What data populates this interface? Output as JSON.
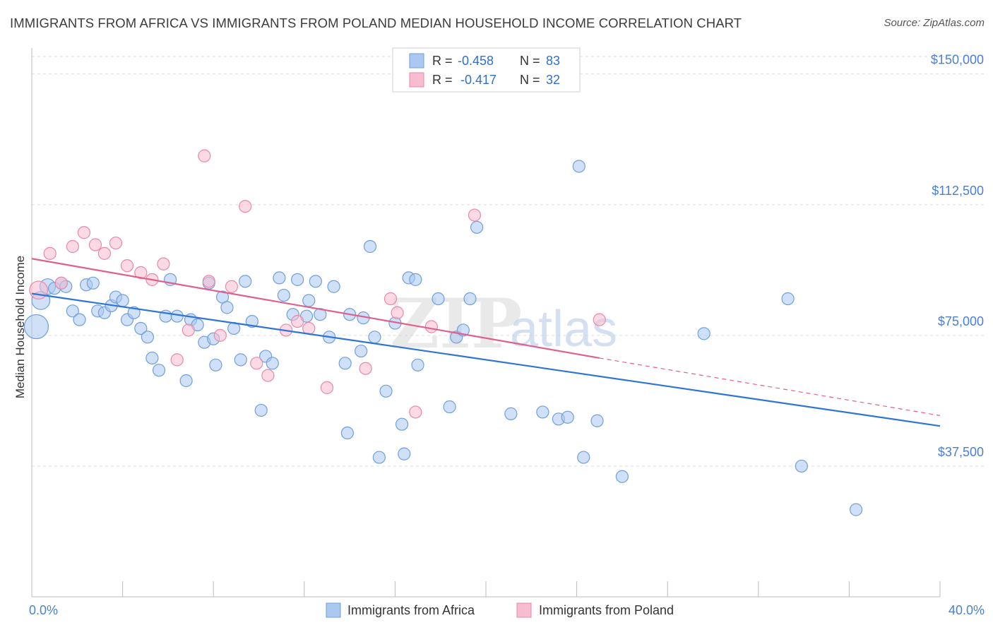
{
  "title": "IMMIGRANTS FROM AFRICA VS IMMIGRANTS FROM POLAND MEDIAN HOUSEHOLD INCOME CORRELATION CHART",
  "source": "Source: ZipAtlas.com",
  "watermark": {
    "zip": "ZIP",
    "atlas": "atlas"
  },
  "colors": {
    "africa_fill": "#aac8f0",
    "africa_stroke": "#6f9fdc",
    "africa_line": "#2f74d6",
    "poland_fill": "#f7bccf",
    "poland_stroke": "#e889a8",
    "poland_line": "#e0608c",
    "grid": "#dddddd",
    "tick_text": "#4a7fd4"
  },
  "legend": {
    "africa": {
      "r_label": "R =",
      "r_value": "-0.458",
      "n_label": "N =",
      "n_value": "83"
    },
    "poland": {
      "r_label": "R =",
      "r_value": "-0.417",
      "n_label": "N =",
      "n_value": "32"
    }
  },
  "chart_data": {
    "type": "scatter",
    "title": "IMMIGRANTS FROM AFRICA VS IMMIGRANTS FROM POLAND MEDIAN HOUSEHOLD INCOME CORRELATION CHART",
    "xlabel": "",
    "ylabel": "Median Household Income",
    "xlim": [
      0,
      40
    ],
    "ylim": [
      0,
      155000
    ],
    "x_ticks": [
      0,
      4,
      8,
      12,
      16,
      20,
      24,
      28,
      32,
      36,
      40
    ],
    "x_tick_labels": [
      {
        "value": 0,
        "label": "0.0%"
      },
      {
        "value": 40,
        "label": "40.0%"
      }
    ],
    "y_ticks": [
      {
        "value": 37500,
        "label": "$37,500"
      },
      {
        "value": 75000,
        "label": "$75,000"
      },
      {
        "value": 112500,
        "label": "$112,500"
      },
      {
        "value": 150000,
        "label": "$150,000"
      }
    ],
    "grid": true,
    "legend_position": "top-center",
    "series": [
      {
        "name": "Immigrants from Africa",
        "trend": {
          "x0": 0,
          "y0": 87000,
          "x1": 40,
          "y1": 49000
        },
        "points": [
          [
            0.2,
            77500,
            2
          ],
          [
            0.4,
            85000,
            1.5
          ],
          [
            0.7,
            89000,
            1.3
          ],
          [
            1.0,
            88500,
            1
          ],
          [
            1.3,
            90000,
            1
          ],
          [
            1.5,
            89000,
            1
          ],
          [
            1.8,
            82000,
            1
          ],
          [
            2.1,
            79500,
            1
          ],
          [
            2.4,
            89500,
            1
          ],
          [
            2.7,
            90000,
            1
          ],
          [
            2.9,
            82000,
            1
          ],
          [
            3.2,
            81500,
            1
          ],
          [
            3.5,
            83500,
            1
          ],
          [
            3.7,
            86000,
            1
          ],
          [
            4.0,
            85000,
            1
          ],
          [
            4.2,
            79500,
            1
          ],
          [
            4.5,
            81500,
            1
          ],
          [
            4.8,
            77000,
            1
          ],
          [
            5.1,
            74500,
            1
          ],
          [
            5.3,
            68500,
            1
          ],
          [
            5.6,
            65000,
            1
          ],
          [
            5.9,
            80500,
            1
          ],
          [
            6.1,
            91000,
            1
          ],
          [
            6.4,
            80500,
            1
          ],
          [
            6.8,
            62000,
            1
          ],
          [
            7.0,
            79500,
            1
          ],
          [
            7.3,
            78000,
            1
          ],
          [
            7.6,
            73000,
            1
          ],
          [
            7.8,
            90000,
            1
          ],
          [
            8.1,
            66500,
            1
          ],
          [
            8.4,
            86000,
            1
          ],
          [
            8.6,
            83000,
            1
          ],
          [
            8.9,
            77000,
            1
          ],
          [
            9.2,
            68000,
            1
          ],
          [
            9.4,
            90500,
            1
          ],
          [
            9.7,
            79000,
            1
          ],
          [
            10.1,
            53500,
            1
          ],
          [
            10.3,
            69000,
            1
          ],
          [
            10.6,
            67000,
            1
          ],
          [
            10.9,
            91500,
            1
          ],
          [
            11.1,
            86500,
            1
          ],
          [
            11.5,
            81000,
            1
          ],
          [
            11.7,
            91000,
            1
          ],
          [
            12.1,
            80500,
            1
          ],
          [
            12.2,
            85000,
            1
          ],
          [
            12.5,
            90500,
            1
          ],
          [
            12.7,
            81000,
            1
          ],
          [
            13.1,
            74500,
            1
          ],
          [
            13.3,
            89000,
            1
          ],
          [
            13.8,
            67000,
            1
          ],
          [
            14.0,
            81000,
            1
          ],
          [
            14.5,
            70500,
            1
          ],
          [
            14.6,
            80000,
            1
          ],
          [
            14.9,
            100500,
            1
          ],
          [
            15.1,
            74500,
            1
          ],
          [
            15.3,
            40000,
            1
          ],
          [
            15.6,
            59000,
            1
          ],
          [
            16.0,
            78500,
            1
          ],
          [
            16.3,
            49500,
            1
          ],
          [
            16.6,
            91500,
            1
          ],
          [
            16.4,
            41000,
            1
          ],
          [
            16.9,
            91000,
            1
          ],
          [
            17.0,
            66500,
            1
          ],
          [
            17.9,
            85500,
            1
          ],
          [
            18.4,
            54500,
            1
          ],
          [
            18.7,
            74500,
            1
          ],
          [
            19.0,
            76500,
            1
          ],
          [
            19.3,
            85500,
            1
          ],
          [
            19.6,
            106000,
            1
          ],
          [
            21.1,
            52500,
            1
          ],
          [
            22.5,
            53000,
            1
          ],
          [
            23.2,
            51000,
            1
          ],
          [
            23.6,
            51500,
            1
          ],
          [
            24.1,
            123500,
            1
          ],
          [
            24.3,
            40000,
            1
          ],
          [
            24.9,
            50500,
            1
          ],
          [
            26.0,
            34500,
            1
          ],
          [
            13.9,
            47000,
            1
          ],
          [
            29.6,
            75500,
            1
          ],
          [
            33.3,
            85500,
            1
          ],
          [
            33.9,
            37500,
            1
          ],
          [
            36.3,
            25000,
            1
          ],
          [
            8.0,
            74000,
            1
          ]
        ]
      },
      {
        "name": "Immigrants from Poland",
        "trend": {
          "x0": 0,
          "y0": 97000,
          "x1": 25,
          "y1": 68500
        },
        "trend_dashed": {
          "x0": 25,
          "y0": 68500,
          "x1": 40,
          "y1": 52000
        },
        "points": [
          [
            0.3,
            88000,
            1.5
          ],
          [
            0.8,
            98500,
            1
          ],
          [
            1.3,
            90000,
            1
          ],
          [
            1.8,
            100500,
            1
          ],
          [
            2.3,
            104500,
            1
          ],
          [
            2.8,
            101000,
            1
          ],
          [
            3.2,
            98500,
            1
          ],
          [
            3.7,
            101500,
            1
          ],
          [
            4.2,
            95000,
            1
          ],
          [
            4.8,
            93000,
            1
          ],
          [
            5.3,
            91000,
            1
          ],
          [
            5.8,
            95500,
            1
          ],
          [
            6.4,
            68000,
            1
          ],
          [
            6.9,
            76500,
            1
          ],
          [
            7.6,
            126500,
            1
          ],
          [
            7.8,
            90500,
            1
          ],
          [
            8.3,
            75000,
            1
          ],
          [
            8.8,
            89000,
            1
          ],
          [
            9.4,
            112000,
            1
          ],
          [
            9.9,
            67000,
            1
          ],
          [
            10.4,
            63500,
            1
          ],
          [
            11.2,
            76500,
            1
          ],
          [
            11.7,
            79000,
            1
          ],
          [
            12.2,
            77000,
            1
          ],
          [
            13.0,
            60000,
            1
          ],
          [
            14.7,
            65500,
            1
          ],
          [
            15.8,
            85500,
            1
          ],
          [
            16.1,
            81500,
            1
          ],
          [
            16.9,
            53000,
            1
          ],
          [
            17.6,
            77500,
            1
          ],
          [
            19.5,
            109500,
            1
          ],
          [
            25.0,
            79500,
            1
          ]
        ]
      }
    ]
  },
  "bottom_legend": {
    "africa_label": "Immigrants from Africa",
    "poland_label": "Immigrants from Poland"
  }
}
